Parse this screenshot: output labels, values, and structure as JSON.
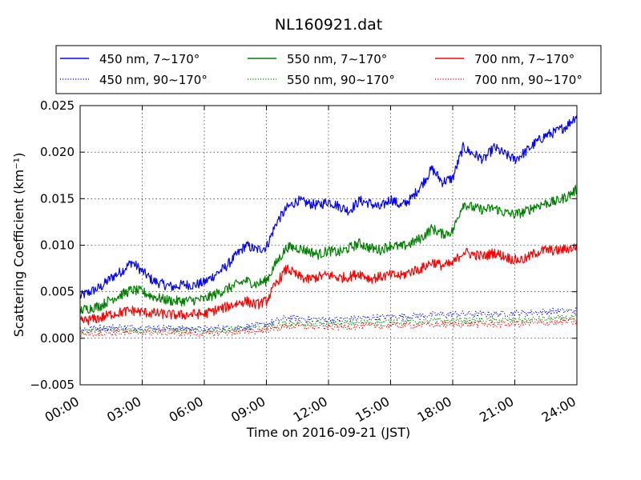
{
  "chart_data": {
    "type": "line",
    "title": "NL160921.dat",
    "xlabel": "Time on 2016-09-21 (JST)",
    "ylabel": "Scattering Coefficient (km⁻¹)",
    "x_tick_labels": [
      "00:00",
      "03:00",
      "06:00",
      "09:00",
      "12:00",
      "15:00",
      "18:00",
      "21:00",
      "24:00"
    ],
    "x_ticks_hours": [
      0,
      3,
      6,
      9,
      12,
      15,
      18,
      21,
      24
    ],
    "xlim_hours": [
      0,
      24
    ],
    "ylim": [
      -0.005,
      0.025
    ],
    "y_ticks": [
      -0.005,
      0.0,
      0.005,
      0.01,
      0.015,
      0.02,
      0.025
    ],
    "y_tick_labels": [
      "−0.005",
      "0.000",
      "0.005",
      "0.010",
      "0.015",
      "0.020",
      "0.025"
    ],
    "grid": true,
    "legend_position": "top",
    "series": [
      {
        "name": "450 nm, 7∼170°",
        "color": "#0000ff",
        "style": "solid",
        "x": [
          0,
          1,
          1.5,
          2,
          2.5,
          3,
          3.5,
          4,
          4.5,
          5,
          5.5,
          6,
          6.5,
          7,
          7.5,
          8,
          8.5,
          9,
          9.5,
          10,
          10.5,
          11,
          11.5,
          12,
          12.5,
          13,
          13.5,
          14,
          14.5,
          15,
          15.5,
          16,
          16.5,
          17,
          17.5,
          18,
          18.5,
          19,
          19.5,
          20,
          20.5,
          21,
          21.5,
          22,
          22.5,
          23,
          23.5,
          24
        ],
        "y": [
          0.0045,
          0.0055,
          0.0065,
          0.0072,
          0.0082,
          0.0072,
          0.0062,
          0.0058,
          0.0055,
          0.0058,
          0.0057,
          0.006,
          0.0068,
          0.0076,
          0.0088,
          0.01,
          0.0095,
          0.0098,
          0.0125,
          0.014,
          0.0148,
          0.0145,
          0.0143,
          0.0147,
          0.0142,
          0.0137,
          0.0148,
          0.0145,
          0.014,
          0.015,
          0.0142,
          0.015,
          0.0165,
          0.0182,
          0.0168,
          0.0172,
          0.0205,
          0.0198,
          0.0192,
          0.0205,
          0.0198,
          0.0192,
          0.02,
          0.021,
          0.0218,
          0.0222,
          0.0228,
          0.024
        ]
      },
      {
        "name": "450 nm, 90∼170°",
        "color": "#0000ff",
        "style": "dotted",
        "x": [
          0,
          2,
          4,
          6,
          8,
          9,
          10,
          12,
          14,
          16,
          18,
          20,
          22,
          24
        ],
        "y": [
          0.001,
          0.0012,
          0.0011,
          0.001,
          0.0012,
          0.0015,
          0.0022,
          0.002,
          0.0022,
          0.0024,
          0.0026,
          0.0026,
          0.0028,
          0.003
        ]
      },
      {
        "name": "550 nm, 7∼170°",
        "color": "#008000",
        "style": "solid",
        "x": [
          0,
          1,
          1.5,
          2,
          2.5,
          3,
          3.5,
          4,
          4.5,
          5,
          5.5,
          6,
          6.5,
          7,
          7.5,
          8,
          8.5,
          9,
          9.5,
          10,
          10.5,
          11,
          11.5,
          12,
          12.5,
          13,
          13.5,
          14,
          14.5,
          15,
          15.5,
          16,
          16.5,
          17,
          17.5,
          18,
          18.5,
          19,
          19.5,
          20,
          20.5,
          21,
          21.5,
          22,
          22.5,
          23,
          23.5,
          24
        ],
        "y": [
          0.003,
          0.0035,
          0.0042,
          0.0047,
          0.0052,
          0.005,
          0.0045,
          0.0042,
          0.004,
          0.004,
          0.0041,
          0.0042,
          0.0047,
          0.0052,
          0.0057,
          0.0062,
          0.0058,
          0.0062,
          0.0082,
          0.0098,
          0.0097,
          0.0094,
          0.009,
          0.0094,
          0.0092,
          0.0097,
          0.0102,
          0.0097,
          0.0095,
          0.01,
          0.0098,
          0.0102,
          0.0108,
          0.0118,
          0.0112,
          0.0115,
          0.0145,
          0.014,
          0.0138,
          0.014,
          0.0135,
          0.0133,
          0.0136,
          0.0142,
          0.0145,
          0.0147,
          0.0152,
          0.016
        ]
      },
      {
        "name": "550 nm, 90∼170°",
        "color": "#008000",
        "style": "dotted",
        "x": [
          0,
          2,
          4,
          6,
          8,
          9,
          10,
          12,
          14,
          16,
          18,
          20,
          22,
          24
        ],
        "y": [
          0.0008,
          0.0009,
          0.0009,
          0.0008,
          0.001,
          0.0012,
          0.0016,
          0.0016,
          0.0017,
          0.0018,
          0.0019,
          0.0019,
          0.002,
          0.0022
        ]
      },
      {
        "name": "700 nm, 7∼170°",
        "color": "#ff0000",
        "style": "solid",
        "x": [
          0,
          1,
          1.5,
          2,
          2.5,
          3,
          3.5,
          4,
          4.5,
          5,
          5.5,
          6,
          6.5,
          7,
          7.5,
          8,
          8.5,
          9,
          9.5,
          10,
          10.5,
          11,
          11.5,
          12,
          12.5,
          13,
          13.5,
          14,
          14.5,
          15,
          15.5,
          16,
          16.5,
          17,
          17.5,
          18,
          18.5,
          19,
          19.5,
          20,
          20.5,
          21,
          21.5,
          22,
          22.5,
          23,
          23.5,
          24
        ],
        "y": [
          0.0018,
          0.0022,
          0.0026,
          0.0028,
          0.003,
          0.0028,
          0.0027,
          0.0026,
          0.0025,
          0.0025,
          0.0026,
          0.0026,
          0.003,
          0.0033,
          0.0037,
          0.004,
          0.0036,
          0.004,
          0.006,
          0.0075,
          0.0067,
          0.0063,
          0.0066,
          0.0068,
          0.0065,
          0.0066,
          0.007,
          0.0064,
          0.0066,
          0.0068,
          0.0067,
          0.0072,
          0.0075,
          0.0082,
          0.0078,
          0.008,
          0.0093,
          0.009,
          0.0088,
          0.0092,
          0.0088,
          0.0084,
          0.0085,
          0.0092,
          0.0095,
          0.0094,
          0.0096,
          0.0098
        ]
      },
      {
        "name": "700 nm, 90∼170°",
        "color": "#ff0000",
        "style": "dotted",
        "x": [
          0,
          2,
          4,
          6,
          8,
          9,
          10,
          12,
          14,
          16,
          18,
          20,
          22,
          24
        ],
        "y": [
          0.0005,
          0.0006,
          0.0006,
          0.0005,
          0.0007,
          0.0009,
          0.0013,
          0.0012,
          0.0013,
          0.0014,
          0.0015,
          0.0015,
          0.0016,
          0.0018
        ]
      }
    ]
  }
}
